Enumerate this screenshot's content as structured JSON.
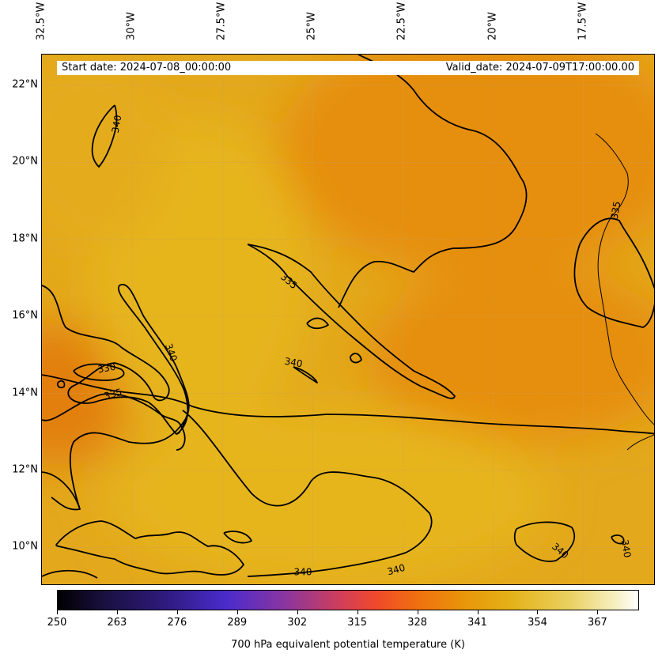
{
  "map": {
    "header": {
      "start_date": "Start date: 2024-07-08_00:00:00",
      "valid_date": "Valid_date: 2024-07-09T17:00:00.00"
    },
    "extent": {
      "lon_min": -32.5,
      "lon_max": -15.5,
      "lat_min": 9.0,
      "lat_max": 22.8
    },
    "lon_ticks": [
      {
        "value": -32.5,
        "label": "32.5°W"
      },
      {
        "value": -30.0,
        "label": "30°W"
      },
      {
        "value": -27.5,
        "label": "27.5°W"
      },
      {
        "value": -25.0,
        "label": "25°W"
      },
      {
        "value": -22.5,
        "label": "22.5°W"
      },
      {
        "value": -20.0,
        "label": "20°W"
      },
      {
        "value": -17.5,
        "label": "17.5°W"
      }
    ],
    "lat_ticks": [
      {
        "value": 22,
        "label": "22°N"
      },
      {
        "value": 20,
        "label": "20°N"
      },
      {
        "value": 18,
        "label": "18°N"
      },
      {
        "value": 16,
        "label": "16°N"
      },
      {
        "value": 14,
        "label": "14°N"
      },
      {
        "value": 12,
        "label": "12°N"
      },
      {
        "value": 10,
        "label": "10°N"
      }
    ],
    "contour_labels": [
      "340",
      "340",
      "330",
      "335",
      "335",
      "340",
      "335",
      "340",
      "340",
      "340",
      "340"
    ],
    "colorbar": {
      "title": "700 hPa equivalent potential temperature (K)",
      "min": 250,
      "max": 376,
      "ticks": [
        "250",
        "263",
        "276",
        "289",
        "302",
        "315",
        "328",
        "341",
        "354",
        "367"
      ],
      "tick_values": [
        250,
        263,
        276,
        289,
        302,
        315,
        328,
        341,
        354,
        367
      ]
    },
    "colors": {
      "field_base": "#e3a81c",
      "field_warm": "#e68e0c",
      "field_light": "#e6b51e",
      "contour": "#000000"
    }
  }
}
